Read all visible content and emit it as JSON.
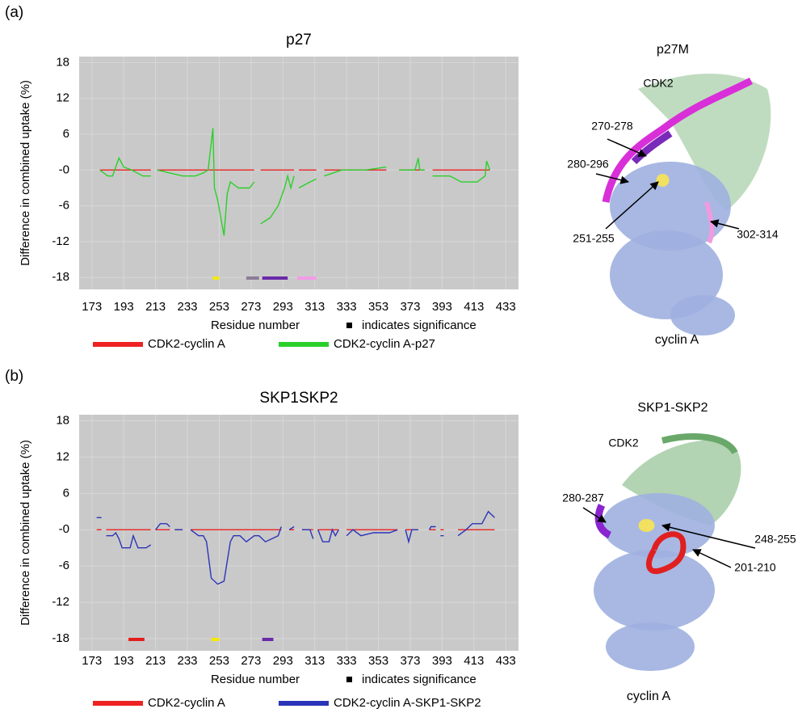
{
  "chart_data": [
    {
      "type": "line",
      "title": "p27",
      "ylabel": "Difference in combined uptake (%)",
      "xlabel": "Residue number",
      "annotation": "indicates significance",
      "xlim": [
        165,
        441
      ],
      "ylim": [
        -20,
        19
      ],
      "xticks": [
        173,
        193,
        213,
        233,
        253,
        273,
        293,
        313,
        333,
        353,
        373,
        393,
        413,
        433
      ],
      "yticks": [
        18,
        12,
        6,
        {
          "value": 0,
          "label": "-0"
        },
        -6,
        -12,
        -18
      ],
      "grid": true,
      "background": "#c9c9c9",
      "x": [
        178,
        183,
        186,
        188,
        190,
        193,
        198,
        205,
        210,
        212,
        214,
        230,
        238,
        243,
        246,
        249,
        250,
        252,
        254,
        256,
        258,
        260,
        265,
        272,
        275,
        277,
        279,
        282,
        285,
        290,
        294,
        296,
        298,
        300,
        302,
        303,
        310,
        314,
        316,
        319,
        330,
        345,
        358,
        362,
        366,
        376,
        378,
        379,
        382,
        384,
        387,
        398,
        405,
        415,
        420,
        421,
        423
      ],
      "series": [
        {
          "name": "CDK2-cyclin A",
          "color": "#ee2222",
          "values": [
            0,
            0,
            0,
            0,
            0,
            0,
            0,
            0,
            0,
            null,
            0,
            0,
            0,
            0,
            0,
            0,
            0,
            0,
            0,
            0,
            0,
            0,
            0,
            0,
            0,
            null,
            0,
            0,
            0,
            0,
            0,
            0,
            0,
            0,
            null,
            0,
            0,
            0,
            null,
            0,
            0,
            0,
            0,
            null,
            0,
            0,
            0,
            0,
            0,
            null,
            0,
            0,
            0,
            0,
            0,
            0,
            0
          ]
        },
        {
          "name": "CDK2-cyclin A-p27",
          "color": "#2ad02a",
          "values": [
            0,
            -1,
            -1,
            0.5,
            2,
            0.5,
            0,
            -1,
            -1,
            null,
            0,
            -1,
            -1,
            -0.5,
            0,
            7,
            -3,
            -5,
            -8,
            -11,
            -4,
            -2,
            -3,
            -3,
            -2,
            null,
            -9,
            -8.5,
            -8,
            -6,
            -3,
            -1,
            -3,
            -1,
            null,
            -3,
            -2,
            -1.5,
            null,
            -1,
            0,
            0,
            0.5,
            null,
            0,
            0,
            2,
            0,
            0,
            null,
            -1,
            -1,
            -2,
            -2,
            -1,
            1.5,
            0
          ]
        }
      ],
      "significance": [
        {
          "x0": 249,
          "x1": 253,
          "color": "#f5ea00"
        },
        {
          "x0": 270,
          "x1": 278,
          "color": "#8c7c96"
        },
        {
          "x0": 280,
          "x1": 296,
          "color": "#6a2aa8"
        },
        {
          "x0": 302,
          "x1": 314,
          "color": "#f29ce8"
        }
      ]
    },
    {
      "type": "line",
      "title": "SKP1SKP2",
      "ylabel": "Difference in combined uptake (%)",
      "xlabel": "Residue number",
      "annotation": "indicates significance",
      "xlim": [
        165,
        441
      ],
      "ylim": [
        -20,
        19
      ],
      "xticks": [
        173,
        193,
        213,
        233,
        253,
        273,
        293,
        313,
        333,
        353,
        373,
        393,
        413,
        433
      ],
      "yticks": [
        18,
        12,
        6,
        {
          "value": 0,
          "label": "-0"
        },
        -6,
        -12,
        -18
      ],
      "grid": true,
      "background": "#c9c9c9",
      "x": [
        176,
        179,
        180,
        182,
        186,
        188,
        190,
        192,
        197,
        199,
        202,
        207,
        210,
        211,
        213,
        216,
        220,
        222,
        223,
        225,
        230,
        233,
        235,
        240,
        243,
        245,
        248,
        252,
        256,
        260,
        262,
        266,
        270,
        275,
        278,
        282,
        286,
        290,
        292,
        293,
        297,
        300,
        303,
        305,
        310,
        312,
        313,
        315,
        318,
        322,
        324,
        326,
        328,
        330,
        333,
        337,
        342,
        350,
        360,
        365,
        368,
        370,
        372,
        374,
        378,
        379,
        381,
        382,
        385,
        386,
        389,
        390,
        392,
        394,
        395,
        403,
        408,
        412,
        418,
        422,
        426
      ],
      "series": [
        {
          "name": "CDK2-cyclin A",
          "color": "#ee2222",
          "values": [
            0,
            0,
            null,
            0,
            0,
            0,
            0,
            0,
            0,
            0,
            0,
            0,
            0,
            null,
            0,
            0,
            0,
            0,
            null,
            0,
            0,
            null,
            0,
            0,
            0,
            0,
            0,
            0,
            0,
            0,
            0,
            0,
            0,
            0,
            0,
            0,
            0,
            0,
            0,
            null,
            0,
            0,
            null,
            0,
            0,
            0,
            null,
            0,
            0,
            0,
            0,
            0,
            0,
            null,
            0,
            0,
            0,
            0,
            0,
            0,
            null,
            0,
            0,
            0,
            0,
            null,
            0,
            null,
            0,
            0,
            0,
            null,
            0,
            0,
            null,
            0,
            0,
            0,
            0,
            0,
            0
          ]
        },
        {
          "name": "CDK2-cyclin A-SKP1-SKP2",
          "color": "#2a34b8",
          "values": [
            2,
            2,
            null,
            -1,
            -1,
            -0.5,
            -1.5,
            -3,
            -3,
            -1,
            -3,
            -3,
            -2.5,
            null,
            0,
            1,
            1,
            0.5,
            null,
            0,
            0,
            null,
            0,
            -1,
            -1,
            -2,
            -8,
            -9,
            -8.5,
            -2,
            -1,
            -1,
            -2,
            -1,
            -1,
            -2,
            -1.5,
            -1,
            0.5,
            null,
            0,
            0.5,
            null,
            0,
            0,
            -1.5,
            null,
            0,
            -2,
            -2,
            0,
            -1,
            0,
            null,
            -1,
            0,
            -1,
            -0.5,
            -0.5,
            0,
            null,
            0,
            -2,
            0,
            0,
            null,
            -0.5,
            null,
            0,
            0.5,
            0.5,
            null,
            -1,
            -1,
            null,
            -1,
            0,
            1,
            1,
            3,
            2
          ]
        }
      ],
      "significance": [
        {
          "x0": 196,
          "x1": 206,
          "color": "#e41c1c"
        },
        {
          "x0": 248,
          "x1": 253,
          "color": "#f5ea00"
        },
        {
          "x0": 280,
          "x1": 287,
          "color": "#6a2aa8"
        }
      ]
    }
  ],
  "figure": {
    "panel_labels": [
      "(a)",
      "(b)"
    ],
    "structures": [
      {
        "title": "p27M",
        "labels": [
          "CDK2",
          "270-278",
          "280-296",
          "251-255",
          "302-314",
          "cyclin A"
        ]
      },
      {
        "title": "SKP1-SKP2",
        "labels": [
          "CDK2",
          "280-287",
          "248-255",
          "201-210",
          "cyclin A"
        ]
      }
    ]
  }
}
